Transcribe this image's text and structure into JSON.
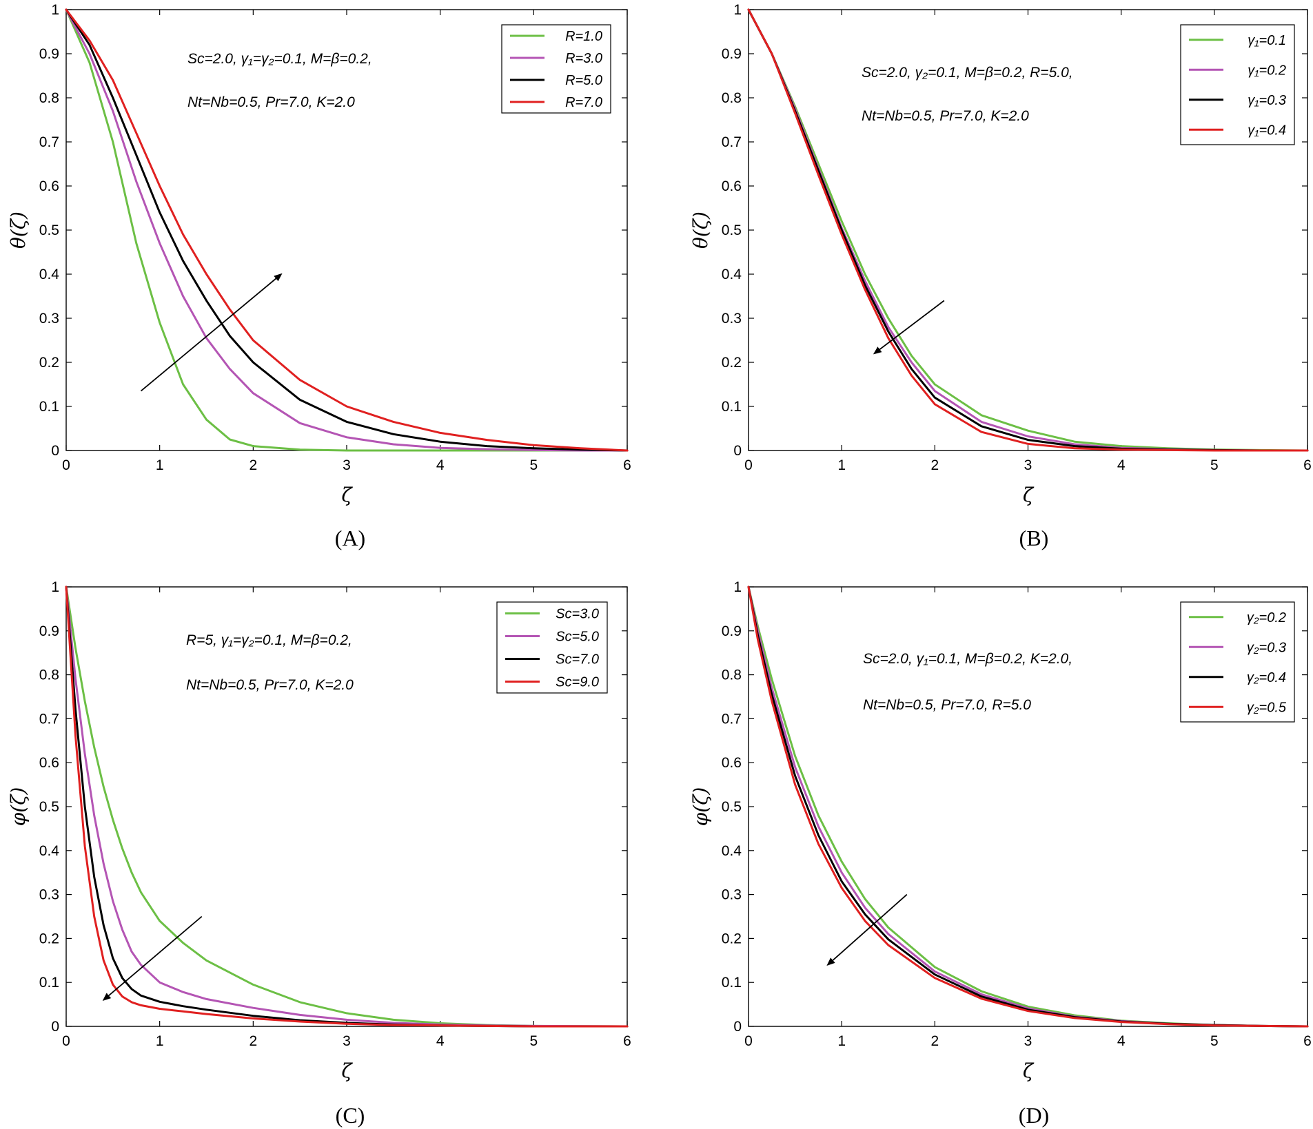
{
  "colors": {
    "green": "#6cbf45",
    "purple": "#b455b4",
    "black": "#000000",
    "red": "#e02020"
  },
  "chart_data": [
    {
      "type": "line",
      "panel_label": "(A)",
      "xlabel": "ζ",
      "ylabel": "θ(ζ)",
      "xlim": [
        0,
        6
      ],
      "ylim": [
        0,
        1
      ],
      "xticks": [
        "0",
        "1",
        "2",
        "3",
        "4",
        "5",
        "6"
      ],
      "yticks": [
        "0",
        "0.1",
        "0.2",
        "0.3",
        "0.4",
        "0.5",
        "0.6",
        "0.7",
        "0.8",
        "0.9",
        "1"
      ],
      "annotation": [
        "Sc=2.0, γ₁=γ₂=0.1, M=β=0.2,",
        "Nt=Nb=0.5, Pr=7.0, K=2.0"
      ],
      "arrow": {
        "from": [
          0.8,
          0.135
        ],
        "to": [
          2.3,
          0.4
        ]
      },
      "x": [
        0,
        0.25,
        0.5,
        0.75,
        1,
        1.25,
        1.5,
        1.75,
        2,
        2.5,
        3,
        3.5,
        4,
        4.5,
        5,
        5.5,
        6
      ],
      "series": [
        {
          "name": "R=1.0",
          "color": "green",
          "values": [
            1,
            0.88,
            0.7,
            0.47,
            0.29,
            0.15,
            0.07,
            0.025,
            0.01,
            0.002,
            0,
            0,
            0,
            0,
            0,
            0,
            0
          ]
        },
        {
          "name": "R=3.0",
          "color": "purple",
          "values": [
            1,
            0.9,
            0.77,
            0.61,
            0.47,
            0.35,
            0.255,
            0.185,
            0.13,
            0.062,
            0.03,
            0.014,
            0.006,
            0.003,
            0.001,
            0,
            0
          ]
        },
        {
          "name": "R=5.0",
          "color": "black",
          "values": [
            1,
            0.92,
            0.8,
            0.67,
            0.54,
            0.43,
            0.34,
            0.26,
            0.2,
            0.115,
            0.065,
            0.037,
            0.02,
            0.01,
            0.005,
            0.002,
            0
          ]
        },
        {
          "name": "R=7.0",
          "color": "red",
          "values": [
            1,
            0.93,
            0.84,
            0.72,
            0.6,
            0.49,
            0.4,
            0.32,
            0.25,
            0.16,
            0.1,
            0.065,
            0.04,
            0.024,
            0.012,
            0.005,
            0
          ]
        }
      ]
    },
    {
      "type": "line",
      "panel_label": "(B)",
      "xlabel": "ζ",
      "ylabel": "θ(ζ)",
      "xlim": [
        0,
        6
      ],
      "ylim": [
        0,
        1
      ],
      "xticks": [
        "0",
        "1",
        "2",
        "3",
        "4",
        "5",
        "6"
      ],
      "yticks": [
        "0",
        "0.1",
        "0.2",
        "0.3",
        "0.4",
        "0.5",
        "0.6",
        "0.7",
        "0.8",
        "0.9",
        "1"
      ],
      "annotation": [
        "Sc=2.0, γ₂=0.1, M=β=0.2, R=5.0,",
        "Nt=Nb=0.5, Pr=7.0, K=2.0"
      ],
      "arrow": {
        "from": [
          2.1,
          0.34
        ],
        "to": [
          1.35,
          0.22
        ]
      },
      "x": [
        0,
        0.25,
        0.5,
        0.75,
        1,
        1.25,
        1.5,
        1.75,
        2,
        2.5,
        3,
        3.5,
        4,
        4.5,
        5,
        5.5,
        6
      ],
      "series": [
        {
          "name": "γ₁=0.1",
          "color": "green",
          "values": [
            1,
            0.9,
            0.78,
            0.65,
            0.52,
            0.4,
            0.3,
            0.215,
            0.15,
            0.08,
            0.045,
            0.02,
            0.01,
            0.005,
            0.002,
            0.001,
            0
          ]
        },
        {
          "name": "γ₁=0.2",
          "color": "purple",
          "values": [
            1,
            0.9,
            0.775,
            0.64,
            0.505,
            0.385,
            0.28,
            0.2,
            0.135,
            0.065,
            0.032,
            0.014,
            0.006,
            0.003,
            0.001,
            0,
            0
          ]
        },
        {
          "name": "γ₁=0.3",
          "color": "black",
          "values": [
            1,
            0.9,
            0.77,
            0.635,
            0.5,
            0.375,
            0.27,
            0.185,
            0.12,
            0.055,
            0.024,
            0.01,
            0.004,
            0.002,
            0.001,
            0,
            0
          ]
        },
        {
          "name": "γ₁=0.4",
          "color": "red",
          "values": [
            1,
            0.9,
            0.765,
            0.625,
            0.49,
            0.365,
            0.255,
            0.17,
            0.105,
            0.042,
            0.015,
            0.005,
            0.002,
            0.001,
            0,
            0,
            0
          ]
        }
      ]
    },
    {
      "type": "line",
      "panel_label": "(C)",
      "xlabel": "ζ",
      "ylabel": "φ(ζ)",
      "xlim": [
        0,
        6
      ],
      "ylim": [
        0,
        1
      ],
      "xticks": [
        "0",
        "1",
        "2",
        "3",
        "4",
        "5",
        "6"
      ],
      "yticks": [
        "0",
        "0.1",
        "0.2",
        "0.3",
        "0.4",
        "0.5",
        "0.6",
        "0.7",
        "0.8",
        "0.9",
        "1"
      ],
      "annotation": [
        "R=5, γ₁=γ₂=0.1, M=β=0.2,",
        "Nt=Nb=0.5, Pr=7.0, K=2.0"
      ],
      "arrow": {
        "from": [
          1.45,
          0.25
        ],
        "to": [
          0.4,
          0.06
        ]
      },
      "x": [
        0,
        0.1,
        0.2,
        0.3,
        0.4,
        0.5,
        0.6,
        0.7,
        0.8,
        1,
        1.25,
        1.5,
        2,
        2.5,
        3,
        3.5,
        4,
        4.5,
        5,
        6
      ],
      "series": [
        {
          "name": "Sc=3.0",
          "color": "green",
          "values": [
            1,
            0.86,
            0.74,
            0.635,
            0.545,
            0.47,
            0.405,
            0.35,
            0.305,
            0.24,
            0.19,
            0.15,
            0.095,
            0.055,
            0.03,
            0.015,
            0.007,
            0.003,
            0.001,
            0
          ]
        },
        {
          "name": "Sc=5.0",
          "color": "purple",
          "values": [
            1,
            0.79,
            0.62,
            0.48,
            0.37,
            0.285,
            0.22,
            0.17,
            0.14,
            0.1,
            0.078,
            0.062,
            0.042,
            0.026,
            0.015,
            0.008,
            0.004,
            0.002,
            0.001,
            0
          ]
        },
        {
          "name": "Sc=7.0",
          "color": "black",
          "values": [
            1,
            0.72,
            0.5,
            0.34,
            0.23,
            0.155,
            0.11,
            0.085,
            0.07,
            0.056,
            0.046,
            0.038,
            0.024,
            0.014,
            0.008,
            0.004,
            0.002,
            0.001,
            0,
            0
          ]
        },
        {
          "name": "Sc=9.0",
          "color": "red",
          "values": [
            1,
            0.66,
            0.41,
            0.25,
            0.15,
            0.095,
            0.068,
            0.055,
            0.048,
            0.04,
            0.034,
            0.028,
            0.018,
            0.011,
            0.006,
            0.003,
            0.002,
            0.001,
            0,
            0
          ]
        }
      ]
    },
    {
      "type": "line",
      "panel_label": "(D)",
      "xlabel": "ζ",
      "ylabel": "φ(ζ)",
      "xlim": [
        0,
        6
      ],
      "ylim": [
        0,
        1
      ],
      "xticks": [
        "0",
        "1",
        "2",
        "3",
        "4",
        "5",
        "6"
      ],
      "yticks": [
        "0",
        "0.1",
        "0.2",
        "0.3",
        "0.4",
        "0.5",
        "0.6",
        "0.7",
        "0.8",
        "0.9",
        "1"
      ],
      "annotation": [
        "Sc=2.0, γ₁=0.1, M=β=0.2, K=2.0,",
        "Nt=Nb=0.5, Pr=7.0, R=5.0"
      ],
      "arrow": {
        "from": [
          1.7,
          0.3
        ],
        "to": [
          0.85,
          0.14
        ]
      },
      "x": [
        0,
        0.1,
        0.25,
        0.5,
        0.75,
        1,
        1.25,
        1.5,
        2,
        2.5,
        3,
        3.5,
        4,
        4.5,
        5,
        5.5,
        6
      ],
      "series": [
        {
          "name": "γ₂=0.2",
          "color": "green",
          "values": [
            1,
            0.91,
            0.79,
            0.615,
            0.48,
            0.375,
            0.29,
            0.225,
            0.135,
            0.08,
            0.045,
            0.025,
            0.013,
            0.007,
            0.003,
            0.001,
            0
          ]
        },
        {
          "name": "γ₂=0.3",
          "color": "purple",
          "values": [
            1,
            0.9,
            0.77,
            0.59,
            0.455,
            0.35,
            0.27,
            0.21,
            0.125,
            0.073,
            0.041,
            0.022,
            0.012,
            0.006,
            0.003,
            0.001,
            0
          ]
        },
        {
          "name": "γ₂=0.4",
          "color": "black",
          "values": [
            1,
            0.89,
            0.755,
            0.57,
            0.435,
            0.33,
            0.255,
            0.198,
            0.118,
            0.068,
            0.038,
            0.021,
            0.011,
            0.006,
            0.003,
            0.001,
            0
          ]
        },
        {
          "name": "γ₂=0.5",
          "color": "red",
          "values": [
            1,
            0.88,
            0.74,
            0.55,
            0.415,
            0.315,
            0.24,
            0.185,
            0.11,
            0.063,
            0.035,
            0.019,
            0.01,
            0.005,
            0.002,
            0.001,
            0
          ]
        }
      ]
    }
  ]
}
